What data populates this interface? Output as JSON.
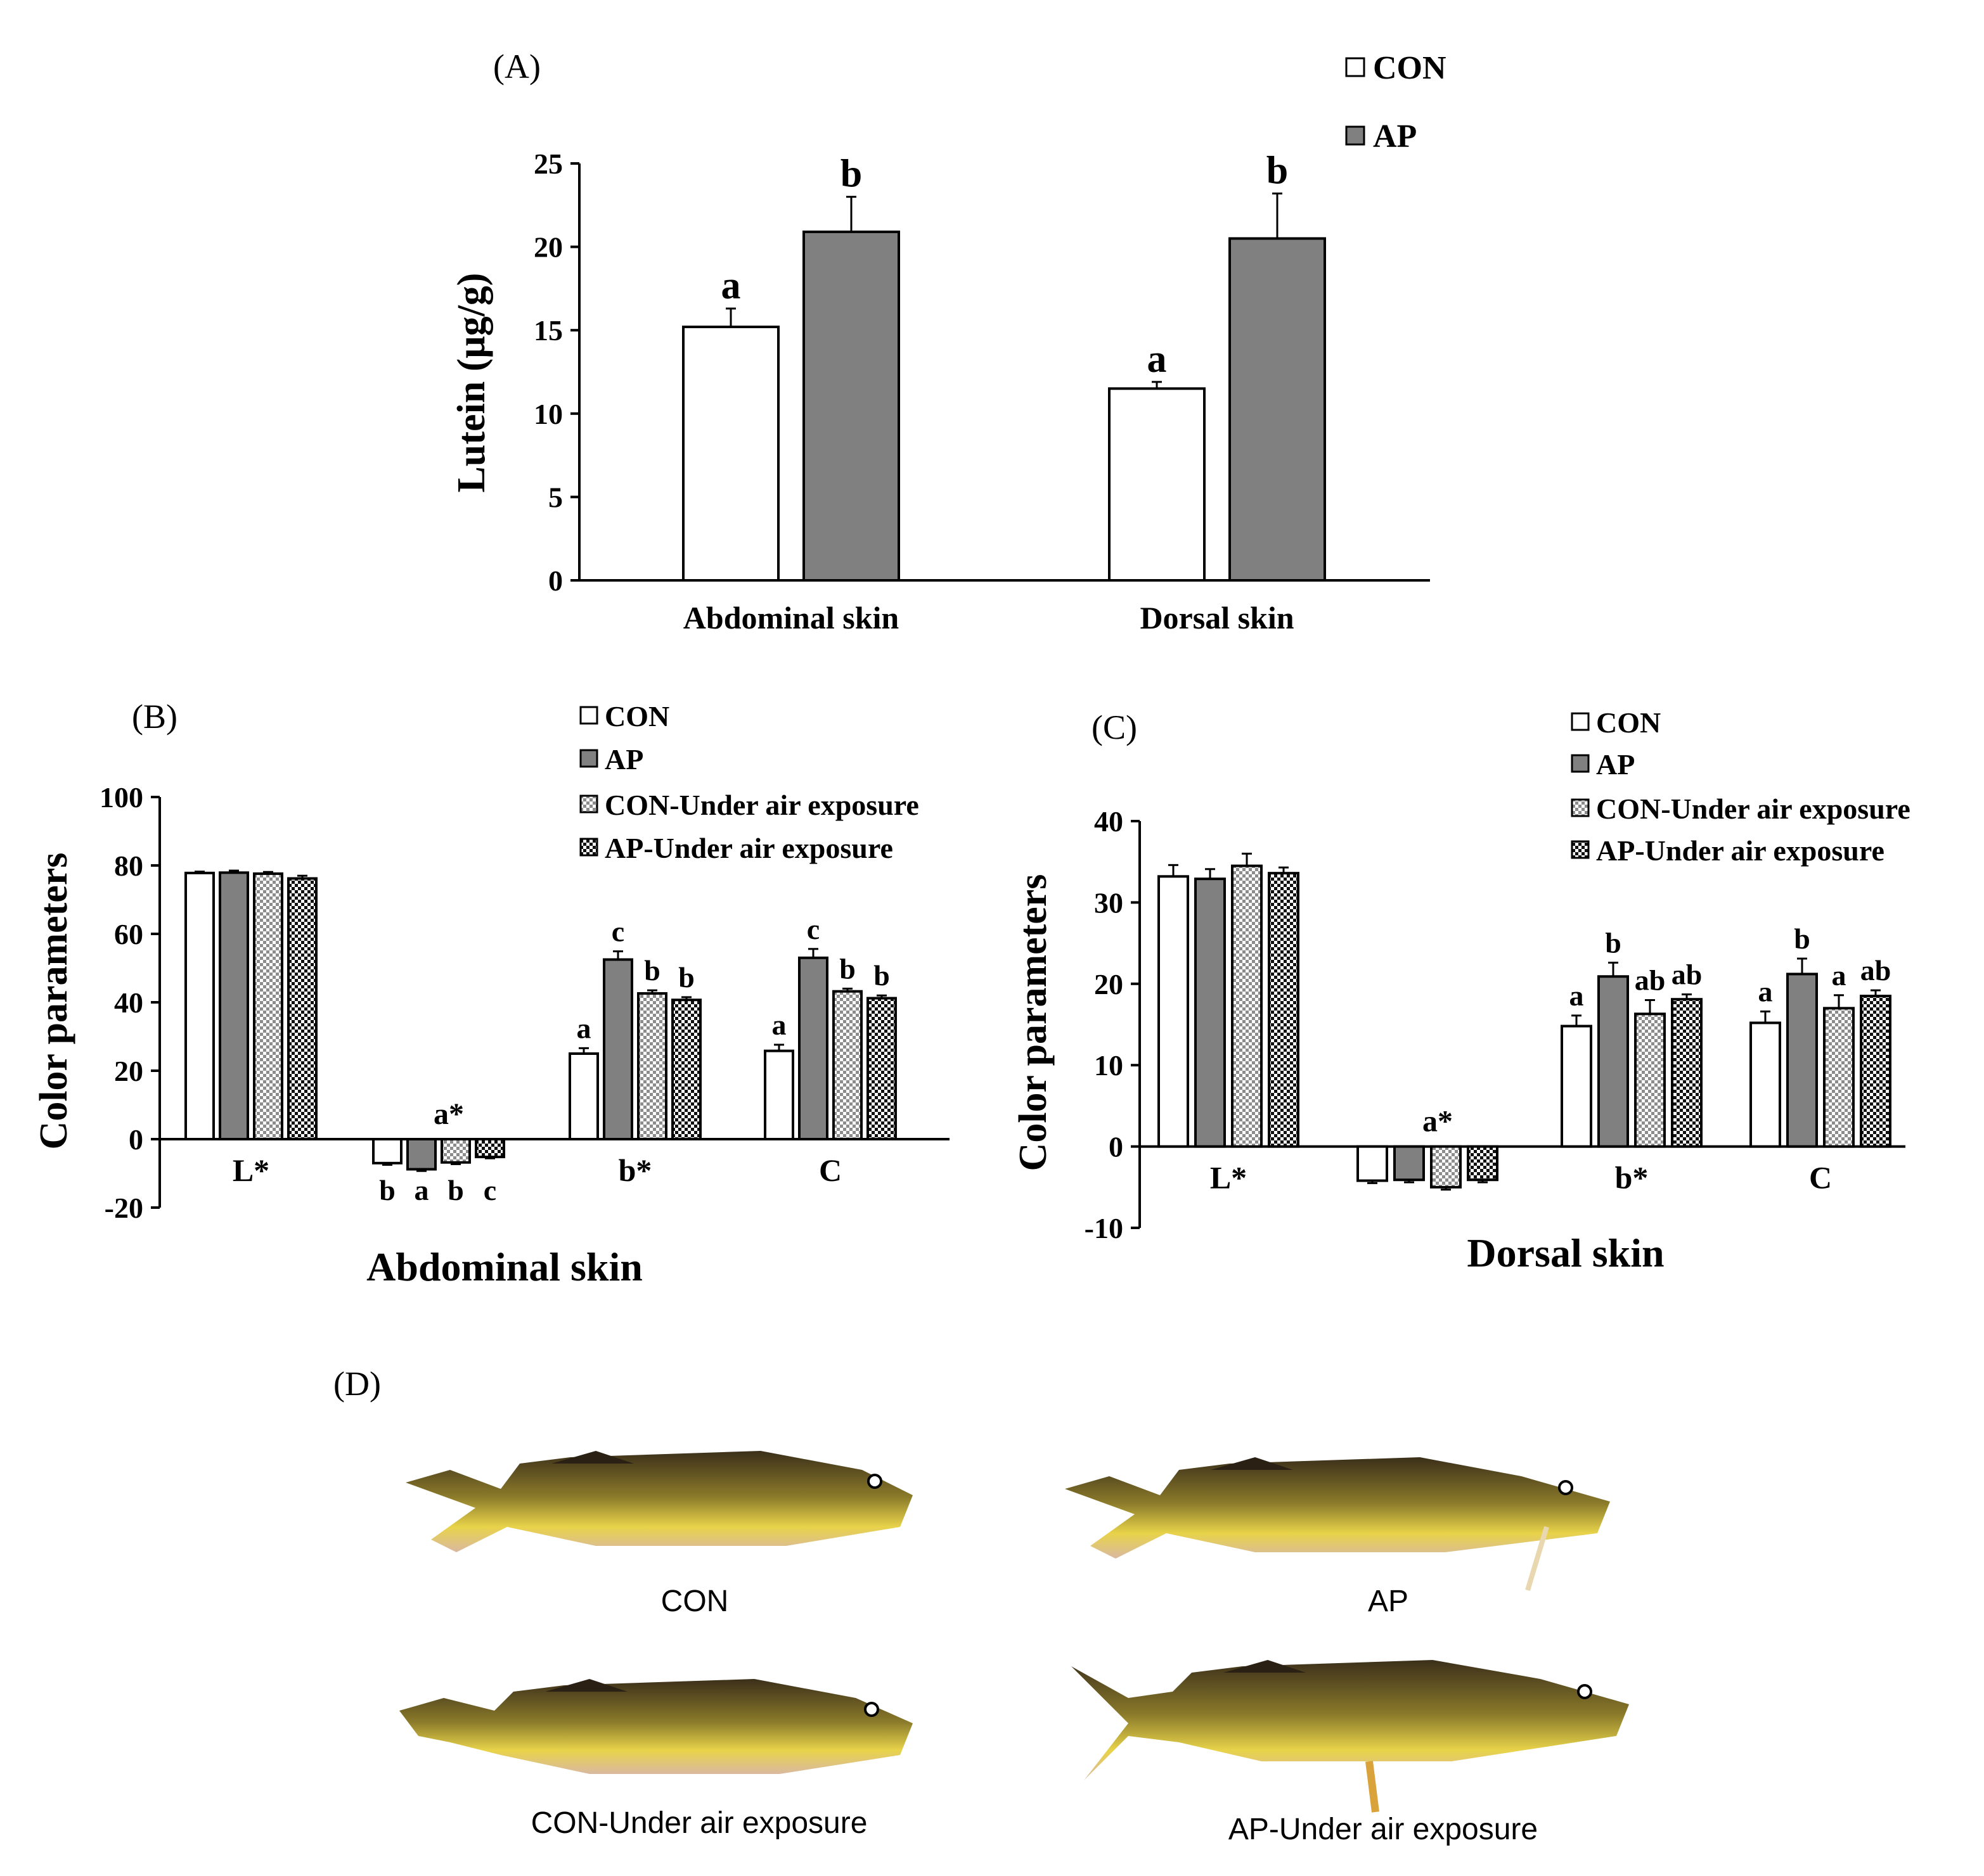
{
  "figure": {
    "colors": {
      "con": "#ffffff",
      "ap": "#808080",
      "axis": "#000000",
      "text": "#000000"
    },
    "panels": {
      "A": {
        "label": "(A)",
        "ylabel": "Lutein (μg/g)",
        "legend": [
          "CON",
          "AP"
        ]
      },
      "B": {
        "label": "(B)",
        "ylabel": "Color parameters",
        "xtitle": "Abdominal skin",
        "legend": [
          "CON",
          "AP",
          "CON-Under air exposure",
          "AP-Under air exposure"
        ]
      },
      "C": {
        "label": "(C)",
        "ylabel": "Color parameters",
        "xtitle": "Dorsal skin",
        "legend": [
          "CON",
          "AP",
          "CON-Under air exposure",
          "AP-Under air exposure"
        ]
      },
      "D": {
        "label": "(D)",
        "photos": [
          {
            "caption": "CON",
            "icon": "fish-photo"
          },
          {
            "caption": "AP",
            "icon": "fish-photo"
          },
          {
            "caption": "CON-Under air exposure",
            "icon": "fish-photo"
          },
          {
            "caption": "AP-Under air exposure",
            "icon": "fish-photo"
          }
        ]
      }
    }
  },
  "chart_data": [
    {
      "id": "A",
      "type": "bar",
      "title": "(A)",
      "xlabel": "",
      "ylabel": "Lutein (μg/g)",
      "ylim": [
        0,
        25
      ],
      "yticks": [
        0,
        5,
        10,
        15,
        20,
        25
      ],
      "categories": [
        "Abdominal skin",
        "Dorsal skin"
      ],
      "series": [
        {
          "name": "CON",
          "values": [
            15.2,
            11.5
          ],
          "errors": [
            1.1,
            0.4
          ],
          "letters": [
            "a",
            "a"
          ]
        },
        {
          "name": "AP",
          "values": [
            20.9,
            20.5
          ],
          "errors": [
            2.1,
            2.7
          ],
          "letters": [
            "b",
            "b"
          ]
        }
      ],
      "legend_position": "top-right"
    },
    {
      "id": "B",
      "type": "bar",
      "title": "(B)",
      "xlabel": "Abdominal skin",
      "ylabel": "Color parameters",
      "ylim": [
        -20,
        100
      ],
      "yticks": [
        -20,
        0,
        20,
        40,
        60,
        80,
        100
      ],
      "categories": [
        "L*",
        "a*",
        "b*",
        "C"
      ],
      "series": [
        {
          "name": "CON",
          "values": [
            77.8,
            -7,
            25,
            25.8
          ],
          "errors": [
            0.4,
            0.5,
            1.6,
            1.8
          ],
          "letters": [
            "",
            "b",
            "a",
            "a"
          ]
        },
        {
          "name": "AP",
          "values": [
            77.9,
            -8.8,
            52.5,
            53
          ],
          "errors": [
            0.6,
            0.5,
            2.4,
            2.6
          ],
          "letters": [
            "",
            "a",
            "c",
            "c"
          ]
        },
        {
          "name": "CON-Under air exposure",
          "values": [
            77.6,
            -6.8,
            42.6,
            43.2
          ],
          "errors": [
            0.5,
            0.5,
            0.9,
            0.8
          ],
          "letters": [
            "",
            "b",
            "b",
            "b"
          ]
        },
        {
          "name": "AP-Under air exposure",
          "values": [
            76.2,
            -5.2,
            40.7,
            41.2
          ],
          "errors": [
            0.8,
            0.4,
            0.8,
            0.8
          ],
          "letters": [
            "",
            "c",
            "b",
            "b"
          ]
        }
      ],
      "group_labels": [
        "",
        "a*",
        "",
        ""
      ],
      "legend_position": "top-right"
    },
    {
      "id": "C",
      "type": "bar",
      "title": "(C)",
      "xlabel": "Dorsal skin",
      "ylabel": "Color parameters",
      "ylim": [
        -10,
        40
      ],
      "yticks": [
        -10,
        0,
        10,
        20,
        30,
        40
      ],
      "categories": [
        "L*",
        "a*",
        "b*",
        "C"
      ],
      "series": [
        {
          "name": "CON",
          "values": [
            33.2,
            -4.2,
            14.8,
            15.2
          ],
          "errors": [
            1.4,
            0.3,
            1.3,
            1.4
          ],
          "letters": [
            "",
            "",
            "a",
            "a"
          ]
        },
        {
          "name": "AP",
          "values": [
            32.9,
            -4.1,
            20.9,
            21.2
          ],
          "errors": [
            1.2,
            0.3,
            1.7,
            1.9
          ],
          "letters": [
            "",
            "",
            "b",
            "b"
          ]
        },
        {
          "name": "CON-Under air exposure",
          "values": [
            34.5,
            -5,
            16.3,
            17
          ],
          "errors": [
            1.5,
            0.3,
            1.7,
            1.6
          ],
          "letters": [
            "",
            "",
            "ab",
            "a"
          ]
        },
        {
          "name": "AP-Under air exposure",
          "values": [
            33.6,
            -4.1,
            18.1,
            18.5
          ],
          "errors": [
            0.7,
            0.3,
            0.6,
            0.7
          ],
          "letters": [
            "",
            "",
            "ab",
            "ab"
          ]
        }
      ],
      "group_labels": [
        "",
        "a*",
        "",
        ""
      ],
      "legend_position": "top-right"
    }
  ]
}
